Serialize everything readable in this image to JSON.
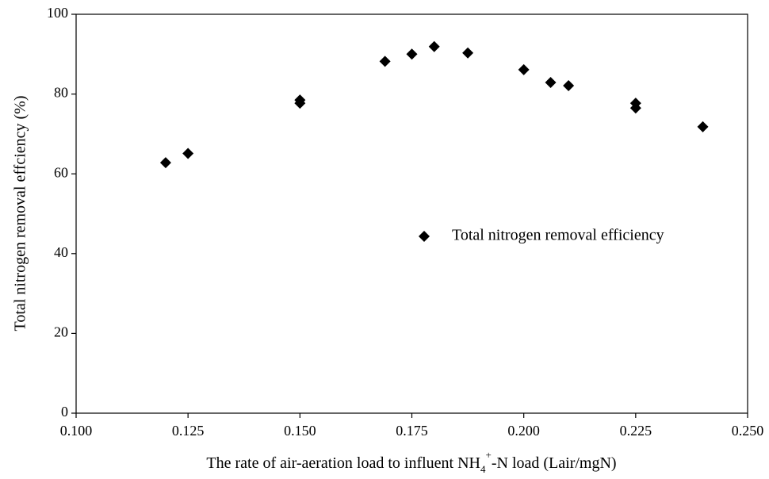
{
  "chart_data": {
    "type": "scatter",
    "x_label": [
      "The rate of air-aeration load to influent NH",
      "4",
      "+",
      "-N load (Lair/mgN)"
    ],
    "y_label": "Total nitrogen removal effciency (%)",
    "xlim": [
      0.1,
      0.25
    ],
    "xticks": [
      {
        "value": 0.1,
        "label": "0.100"
      },
      {
        "value": 0.125,
        "label": "0.125"
      },
      {
        "value": 0.15,
        "label": "0.150"
      },
      {
        "value": 0.175,
        "label": "0.175"
      },
      {
        "value": 0.2,
        "label": "0.200"
      },
      {
        "value": 0.225,
        "label": "0.225"
      },
      {
        "value": 0.25,
        "label": "0.250"
      }
    ],
    "ylim": [
      0,
      100
    ],
    "yticks": [
      0,
      20,
      40,
      60,
      80,
      100
    ],
    "legend": "right",
    "series": [
      {
        "name": "Total nitrogen removal efficiency",
        "color": "#000000",
        "marker": "diamond",
        "x": [
          0.12,
          0.125,
          0.15,
          0.15,
          0.169,
          0.175,
          0.18,
          0.1875,
          0.2,
          0.206,
          0.21,
          0.225,
          0.225,
          0.24
        ],
        "values": [
          62.8,
          65.1,
          78.5,
          77.7,
          88.2,
          90.0,
          91.9,
          90.3,
          86.1,
          82.9,
          82.1,
          77.7,
          76.5,
          71.8
        ]
      }
    ]
  }
}
